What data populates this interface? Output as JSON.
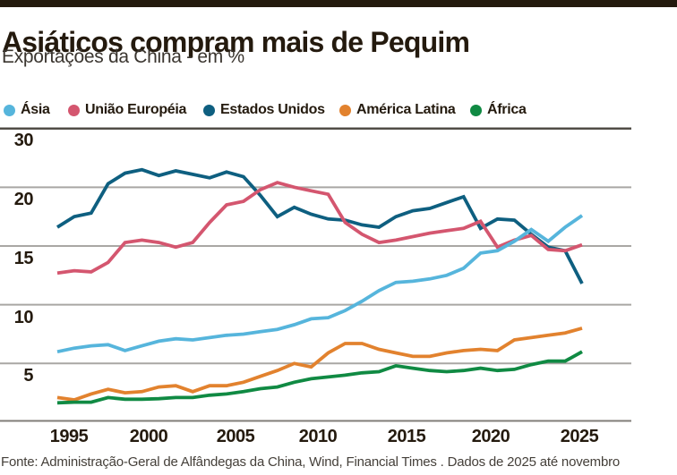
{
  "page": {
    "title": "Asiáticos compram mais de Pequim",
    "subtitle": "Exportações da China - em %",
    "source": "Fonte: Administração-Geral de Alfândegas da China, Wind, Financial Times . Dados de 2025 até novembro"
  },
  "colors": {
    "top_bar": "#241a0e",
    "title_text": "#241a0e",
    "subtitle_text": "#3a352f",
    "top_rule": "#4a463f",
    "grid": "#a9a7a4",
    "axis": "#807d78",
    "tick_text": "#241a0e",
    "source_text": "#45403a",
    "asia": "#56b5dc",
    "uniao_europeia": "#d4566f",
    "estados_unidos": "#0e5f80",
    "america_latina": "#e2822e",
    "africa": "#108a43"
  },
  "legend": {
    "items": [
      {
        "label": "Ásia",
        "color": "#56b5dc"
      },
      {
        "label": "União Européia",
        "color": "#d4566f"
      },
      {
        "label": "Estados Unidos",
        "color": "#0e5f80"
      },
      {
        "label": "América Latina",
        "color": "#e2822e"
      },
      {
        "label": "África",
        "color": "#108a43"
      }
    ]
  },
  "chart": {
    "y_ticks": [
      "30",
      "20",
      "15",
      "10",
      "5"
    ],
    "x_ticks": [
      "1995",
      "2000",
      "2005",
      "2010",
      "2015",
      "2020",
      "2025"
    ]
  },
  "chart_data": {
    "type": "line",
    "title": "Asiáticos compram mais de Pequim",
    "subtitle": "Exportações da China - em %",
    "xlabel": "",
    "ylabel": "em %",
    "legend_position": "top",
    "grid": "horizontal",
    "ylim": [
      0,
      25
    ],
    "y_axis_labels_displayed": [
      "30",
      "20",
      "15",
      "10",
      "5"
    ],
    "x_axis_labels_displayed": [
      "1995",
      "2000",
      "2005",
      "2010",
      "2015",
      "2020",
      "2025"
    ],
    "x": [
      1994,
      1995,
      1996,
      1997,
      1998,
      1999,
      2000,
      2001,
      2002,
      2003,
      2004,
      2005,
      2006,
      2007,
      2008,
      2009,
      2010,
      2011,
      2012,
      2013,
      2014,
      2015,
      2016,
      2017,
      2018,
      2019,
      2020,
      2021,
      2022,
      2023,
      2024,
      2025
    ],
    "series": [
      {
        "key": "asia",
        "name": "Ásia",
        "color": "#56b5dc",
        "values": [
          6.0,
          6.3,
          6.5,
          6.6,
          6.1,
          6.5,
          6.9,
          7.1,
          7.0,
          7.2,
          7.4,
          7.5,
          7.7,
          7.9,
          8.3,
          8.8,
          8.9,
          9.5,
          10.3,
          11.2,
          11.9,
          12.0,
          12.2,
          12.5,
          13.1,
          14.4,
          14.6,
          15.4,
          16.4,
          15.4,
          16.6,
          17.6
        ]
      },
      {
        "key": "uniao_europeia",
        "name": "União Européia",
        "color": "#d4566f",
        "values": [
          12.7,
          12.9,
          12.8,
          13.6,
          15.3,
          15.5,
          15.3,
          14.9,
          15.3,
          17.0,
          18.5,
          18.8,
          19.8,
          20.4,
          20.0,
          19.7,
          19.4,
          17.0,
          16.0,
          15.3,
          15.5,
          15.8,
          16.1,
          16.3,
          16.5,
          17.1,
          14.9,
          15.5,
          15.9,
          14.7,
          14.6,
          15.1
        ]
      },
      {
        "key": "estados_unidos",
        "name": "Estados Unidos",
        "color": "#0e5f80",
        "values": [
          16.6,
          17.5,
          17.8,
          20.3,
          21.2,
          21.5,
          21.0,
          21.4,
          21.1,
          20.8,
          21.3,
          20.9,
          19.3,
          17.5,
          18.3,
          17.7,
          17.3,
          17.2,
          16.8,
          16.6,
          17.5,
          18.0,
          18.2,
          18.7,
          19.2,
          16.5,
          17.3,
          17.2,
          16.0,
          14.9,
          14.6,
          11.8
        ]
      },
      {
        "key": "america_latina",
        "name": "América Latina",
        "color": "#e2822e",
        "values": [
          2.1,
          1.9,
          2.4,
          2.8,
          2.5,
          2.6,
          3.0,
          3.1,
          2.6,
          3.1,
          3.1,
          3.4,
          3.9,
          4.4,
          5.0,
          4.7,
          5.9,
          6.7,
          6.7,
          6.2,
          5.9,
          5.6,
          5.6,
          5.9,
          6.1,
          6.2,
          6.1,
          7.0,
          7.2,
          7.4,
          7.6,
          8.0
        ]
      },
      {
        "key": "africa",
        "name": "África",
        "color": "#108a43",
        "values": [
          1.65,
          1.7,
          1.7,
          2.1,
          1.95,
          1.95,
          2.0,
          2.1,
          2.1,
          2.3,
          2.4,
          2.6,
          2.85,
          3.0,
          3.4,
          3.7,
          3.85,
          4.0,
          4.2,
          4.3,
          4.8,
          4.6,
          4.4,
          4.3,
          4.4,
          4.6,
          4.4,
          4.5,
          4.9,
          5.2,
          5.2,
          6.0
        ]
      }
    ]
  }
}
